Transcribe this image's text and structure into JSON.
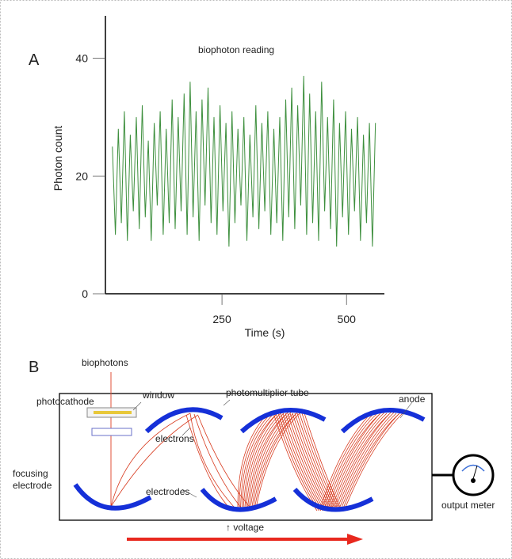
{
  "chart_data": {
    "type": "line",
    "annotation": "biophoton reading",
    "xlabel": "Time (s)",
    "ylabel": "Photon count",
    "x": [
      30,
      36,
      42,
      48,
      54,
      60,
      66,
      72,
      78,
      84,
      90,
      96,
      102,
      108,
      114,
      120,
      126,
      132,
      138,
      144,
      150,
      156,
      162,
      168,
      174,
      180,
      186,
      192,
      198,
      204,
      210,
      216,
      222,
      228,
      234,
      240,
      246,
      252,
      258,
      264,
      270,
      276,
      282,
      288,
      294,
      300,
      306,
      312,
      318,
      324,
      330,
      336,
      342,
      348,
      354,
      360,
      366,
      372,
      378,
      384,
      390,
      396,
      402,
      408,
      414,
      420,
      426,
      432,
      438,
      444,
      450,
      456,
      462,
      468,
      474,
      480,
      486,
      492,
      498,
      504,
      510,
      516,
      522,
      528,
      534,
      540,
      546,
      552,
      558
    ],
    "values": [
      25,
      10,
      28,
      12,
      31,
      9,
      27,
      14,
      30,
      11,
      32,
      13,
      26,
      9,
      29,
      15,
      31,
      10,
      28,
      12,
      33,
      11,
      30,
      14,
      34,
      10,
      36,
      13,
      31,
      9,
      33,
      15,
      35,
      12,
      30,
      10,
      32,
      14,
      29,
      8,
      31,
      12,
      28,
      15,
      30,
      9,
      27,
      13,
      32,
      11,
      29,
      14,
      31,
      10,
      28,
      12,
      30,
      9,
      33,
      13,
      35,
      11,
      32,
      15,
      37,
      10,
      34,
      12,
      31,
      9,
      36,
      14,
      30,
      11,
      33,
      8,
      29,
      13,
      31,
      10,
      28,
      14,
      30,
      9,
      27,
      12,
      29,
      8,
      29
    ],
    "color": "#3d8f3d",
    "xlim": [
      16,
      576
    ],
    "ylim": [
      0,
      47.2
    ],
    "xticks": [
      250,
      500
    ],
    "yticks": [
      0,
      20,
      40
    ]
  },
  "panel_labels": [
    "A",
    "B"
  ],
  "diagram": {
    "biophotons": "biophotons",
    "photocathode": "photocathode",
    "window": "window",
    "tube": "photomultiplier tube",
    "anode": "anode",
    "electrons": "electrons",
    "focusing": [
      "focusing",
      "electrode"
    ],
    "electrodes": "electrodes",
    "meter": "output meter",
    "voltage": "↑ voltage"
  }
}
